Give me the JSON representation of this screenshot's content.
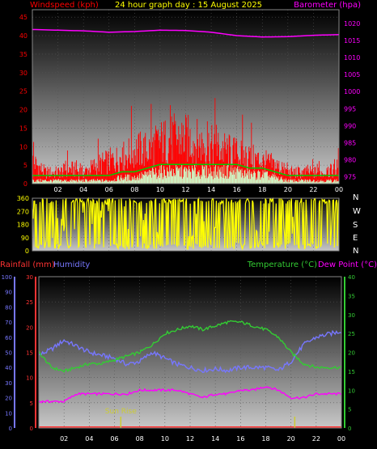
{
  "title": "24 hour graph day : 15 August 2025",
  "colors": {
    "wind": "#ff0000",
    "gust": "#00cc00",
    "baro": "#ff00ff",
    "wdir": "#ffff00",
    "rain": "#ff3333",
    "humidity": "#7777ff",
    "temp": "#33cc33",
    "dew": "#ff00ff",
    "title": "#ffff00",
    "sunmark": "#cccc33"
  },
  "chart_data": [
    {
      "type": "line",
      "id": "wind-baro",
      "title": "24 hour graph day : 15 August 2025",
      "left_axis_label": "Windspeed (kph)",
      "right_axis_label": "Barometer (hpa)",
      "x_ticks": [
        "02",
        "04",
        "06",
        "08",
        "10",
        "12",
        "14",
        "16",
        "18",
        "20",
        "22",
        "00"
      ],
      "y_left_ticks": [
        "0",
        "5",
        "10",
        "15",
        "20",
        "25",
        "30",
        "35",
        "40",
        "45"
      ],
      "y_right_ticks": [
        "975",
        "980",
        "985",
        "990",
        "995",
        "1000",
        "1005",
        "1010",
        "1015",
        "1020"
      ],
      "ylim_left": [
        0,
        47
      ],
      "ylim_right": [
        973,
        1024
      ],
      "xlim": [
        0,
        24
      ],
      "series": [
        {
          "name": "Windspeed",
          "axis": "left",
          "x": [
            0,
            1,
            2,
            3,
            4,
            5,
            6,
            7,
            8,
            9,
            10,
            11,
            12,
            13,
            14,
            15,
            16,
            17,
            18,
            19,
            20,
            21,
            22,
            23,
            24
          ],
          "values": [
            6,
            3,
            3,
            4,
            3,
            5,
            6,
            7,
            9,
            9,
            11,
            12,
            12,
            11,
            10,
            9,
            8,
            7,
            6,
            5,
            3,
            3,
            3,
            3,
            4
          ]
        },
        {
          "name": "Gust",
          "axis": "left",
          "x": [
            0,
            1,
            2,
            3,
            4,
            5,
            6,
            7,
            8,
            9,
            10,
            11,
            12,
            13,
            14,
            15,
            16,
            17,
            18,
            19,
            20,
            21,
            22,
            23,
            24
          ],
          "values": [
            1,
            1,
            1,
            1,
            1,
            1,
            1,
            2,
            2,
            3,
            4,
            4,
            4,
            4,
            4,
            4,
            4,
            3,
            3,
            2,
            1,
            1,
            1,
            1,
            1
          ]
        },
        {
          "name": "Barometer",
          "axis": "right",
          "x": [
            0,
            2,
            4,
            6,
            8,
            10,
            12,
            14,
            16,
            18,
            20,
            22,
            24
          ],
          "values": [
            1018.2,
            1018.0,
            1017.8,
            1017.4,
            1017.6,
            1018.0,
            1017.9,
            1017.4,
            1016.4,
            1016.0,
            1016.1,
            1016.5,
            1016.7
          ]
        }
      ]
    },
    {
      "type": "line",
      "id": "wind-dir",
      "y_left_ticks": [
        "0",
        "90",
        "180",
        "270",
        "360"
      ],
      "y_right_labels": [
        "N",
        "W",
        "S",
        "E",
        "N"
      ],
      "ylim": [
        0,
        360
      ],
      "xlim": [
        0,
        24
      ],
      "series": [
        {
          "name": "Wind direction",
          "x": [
            0,
            1,
            2,
            3,
            4,
            5,
            6,
            7,
            8,
            9,
            10,
            11,
            12,
            13,
            14,
            15,
            16,
            17,
            18,
            19,
            20,
            21,
            22,
            23,
            24
          ],
          "values": [
            300,
            40,
            200,
            60,
            300,
            120,
            330,
            340,
            30,
            345,
            20,
            340,
            10,
            330,
            40,
            300,
            60,
            280,
            20,
            330,
            40,
            350,
            20,
            10,
            300
          ]
        }
      ]
    },
    {
      "type": "line",
      "id": "rain-hum-temp",
      "rain_axis_label": "Rainfall (mm)",
      "humidity_axis_label": "Humidity",
      "temp_axis_label": "Temperature (°C)",
      "dew_axis_label": "Dew Point (°C)",
      "x_ticks": [
        "02",
        "04",
        "06",
        "08",
        "10",
        "12",
        "14",
        "16",
        "18",
        "20",
        "22",
        "00"
      ],
      "y_humidity_ticks": [
        "0",
        "10",
        "20",
        "30",
        "40",
        "50",
        "60",
        "70",
        "80",
        "90",
        "100"
      ],
      "y_rain_ticks": [
        "0",
        "5",
        "10",
        "15",
        "20",
        "25",
        "30"
      ],
      "y_temp_ticks": [
        "0",
        "5",
        "10",
        "15",
        "20",
        "25",
        "30",
        "35",
        "40"
      ],
      "ylim_humidity": [
        0,
        100
      ],
      "ylim_rain": [
        0,
        30
      ],
      "ylim_temp": [
        0,
        40
      ],
      "xlim": [
        0,
        24
      ],
      "annotations": [
        "Sun Rise"
      ],
      "sun_rise_hour": 6.5,
      "sun_set_hour": 20.3,
      "series": [
        {
          "name": "Rainfall",
          "axis": "rain",
          "x": [
            0,
            24
          ],
          "values": [
            0,
            0
          ]
        },
        {
          "name": "Humidity",
          "axis": "humidity",
          "x": [
            0,
            1,
            2,
            3,
            4,
            5,
            6,
            7,
            8,
            9,
            10,
            11,
            12,
            13,
            14,
            15,
            16,
            17,
            18,
            19,
            20,
            21,
            22,
            23,
            24
          ],
          "values": [
            48,
            52,
            58,
            54,
            50,
            48,
            46,
            42,
            44,
            50,
            46,
            42,
            40,
            38,
            39,
            38,
            40,
            40,
            40,
            38,
            44,
            55,
            60,
            62,
            64
          ]
        },
        {
          "name": "Temperature",
          "axis": "temp",
          "x": [
            0,
            1,
            2,
            3,
            4,
            5,
            6,
            7,
            8,
            9,
            10,
            11,
            12,
            13,
            14,
            15,
            16,
            17,
            18,
            19,
            20,
            21,
            22,
            23,
            24
          ],
          "values": [
            20,
            16,
            15,
            16,
            17,
            17,
            18,
            19,
            20,
            22,
            25,
            26,
            27,
            26,
            27,
            28,
            28,
            27,
            26,
            24,
            20,
            17,
            16,
            16,
            16
          ]
        },
        {
          "name": "Dew Point",
          "axis": "temp",
          "x": [
            0,
            1,
            2,
            3,
            4,
            5,
            6,
            7,
            8,
            9,
            10,
            11,
            12,
            13,
            14,
            15,
            16,
            17,
            18,
            19,
            20,
            21,
            22,
            23,
            24
          ],
          "values": [
            7,
            7,
            7,
            9,
            9,
            9,
            9,
            9,
            10,
            10,
            10,
            10,
            9,
            8,
            9,
            9,
            10,
            10,
            11,
            10,
            8,
            8,
            9,
            9,
            9
          ]
        }
      ]
    }
  ]
}
